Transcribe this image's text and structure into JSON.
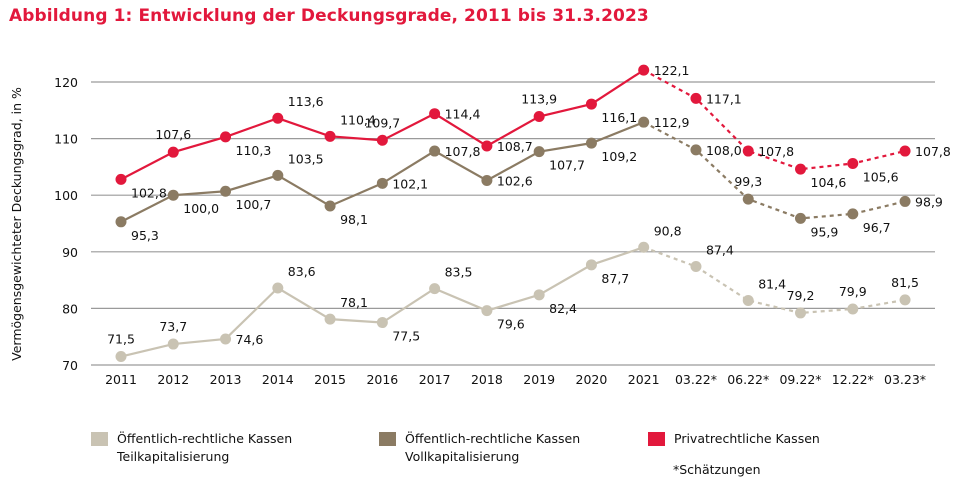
{
  "title": "Abbildung 1: Entwicklung der Deckungsgrade, 2011 bis 31.3.2023",
  "note": "*Schätzungen",
  "chart_data": {
    "type": "line",
    "title": "Abbildung 1: Entwicklung der Deckungsgrade, 2011 bis 31.3.2023",
    "ylabel": "Vermögensgewichteter Deckungsgrad, in %",
    "xlabel": "",
    "ylim": [
      70,
      120
    ],
    "yticks": [
      "70",
      "80",
      "90",
      "100",
      "110",
      "120"
    ],
    "grid": true,
    "legend_position": "bottom",
    "categories": [
      "2011",
      "2012",
      "2013",
      "2014",
      "2015",
      "2016",
      "2017",
      "2018",
      "2019",
      "2020",
      "2021",
      "03.22*",
      "06.22*",
      "09.22*",
      "12.22*",
      "03.23*"
    ],
    "estimated_from": "03.22*",
    "series": [
      {
        "name": "Öffentlich-rechtliche Kassen Teilkapitalisierung",
        "name_lines": [
          "Öffentlich-rechtliche Kassen",
          "Teilkapitalisierung"
        ],
        "color": "#c9c3b3",
        "values": [
          71.5,
          73.7,
          74.6,
          83.6,
          78.1,
          77.5,
          83.5,
          79.6,
          82.4,
          87.7,
          90.8,
          87.4,
          81.4,
          79.2,
          79.9,
          81.5
        ],
        "labels": [
          "71,5",
          "73,7",
          "74,6",
          "83,6",
          "78,1",
          "77,5",
          "83,5",
          "79,6",
          "82,4",
          "87,7",
          "90,8",
          "87,4",
          "81,4",
          "79,2",
          "79,9",
          "81,5"
        ]
      },
      {
        "name": "Öffentlich-rechtliche Kassen Vollkapitalisierung",
        "name_lines": [
          "Öffentlich-rechtliche Kassen",
          "Vollkapitalisierung"
        ],
        "color": "#8b7b63",
        "values": [
          95.3,
          100.0,
          100.7,
          103.5,
          98.1,
          102.1,
          107.8,
          102.6,
          107.7,
          109.2,
          112.9,
          108.0,
          99.3,
          95.9,
          96.7,
          98.9
        ],
        "labels": [
          "95,3",
          "100,0",
          "100,7",
          "103,5",
          "98,1",
          "102,1",
          "107,8",
          "102,6",
          "107,7",
          "109,2",
          "112,9",
          "108,0",
          "99,3",
          "95,9",
          "96,7",
          "98,9"
        ]
      },
      {
        "name": "Privatrechtliche Kassen",
        "name_lines": [
          "Privatrechtliche Kassen"
        ],
        "color": "#e2183c",
        "values": [
          102.8,
          107.6,
          110.3,
          113.6,
          110.4,
          109.7,
          114.4,
          108.7,
          113.9,
          116.1,
          122.1,
          117.1,
          107.8,
          104.6,
          105.6,
          107.8
        ],
        "labels": [
          "102,8",
          "107,6",
          "110,3",
          "113,6",
          "110,4",
          "109,7",
          "114,4",
          "108,7",
          "113,9",
          "116,1",
          "122,1",
          "117,1",
          "107,8",
          "104,6",
          "105,6",
          "107,8"
        ]
      }
    ]
  }
}
